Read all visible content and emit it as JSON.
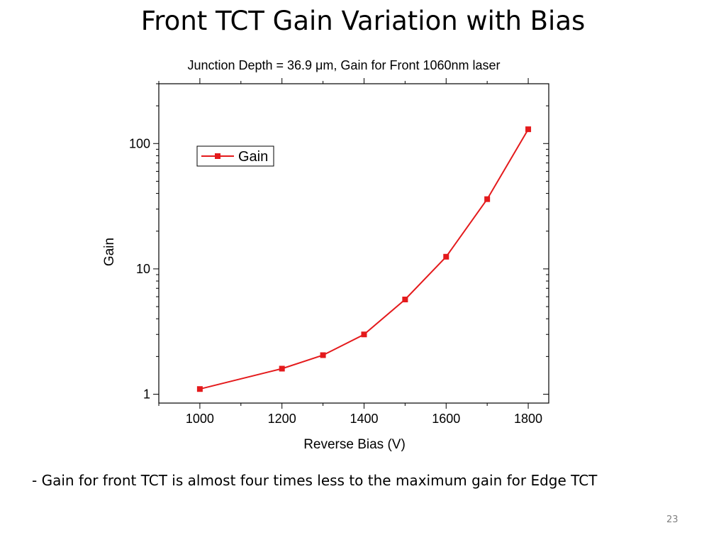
{
  "slide": {
    "title": "Front TCT Gain Variation with Bias",
    "caption": "- Gain for front TCT is almost four times less to the maximum gain for Edge TCT",
    "page_number": "23"
  },
  "chart_data": {
    "type": "line",
    "title": "Junction Depth = 36.9 μm, Gain for Front 1060nm laser",
    "xlabel": "Reverse Bias (V)",
    "ylabel": "Gain",
    "xlim": [
      900,
      1850
    ],
    "ylim": [
      0.85,
      300
    ],
    "y_scale": "log",
    "x_ticks": [
      1000,
      1200,
      1400,
      1600,
      1800
    ],
    "y_ticks": [
      1,
      10,
      100
    ],
    "grid": false,
    "legend_position": "top-left",
    "series": [
      {
        "name": "Gain",
        "color": "#e41a1c",
        "marker": "square",
        "x": [
          1000,
          1200,
          1300,
          1400,
          1500,
          1600,
          1700,
          1800
        ],
        "y": [
          1.1,
          1.6,
          2.05,
          3.0,
          5.7,
          12.5,
          36,
          130
        ]
      }
    ]
  }
}
